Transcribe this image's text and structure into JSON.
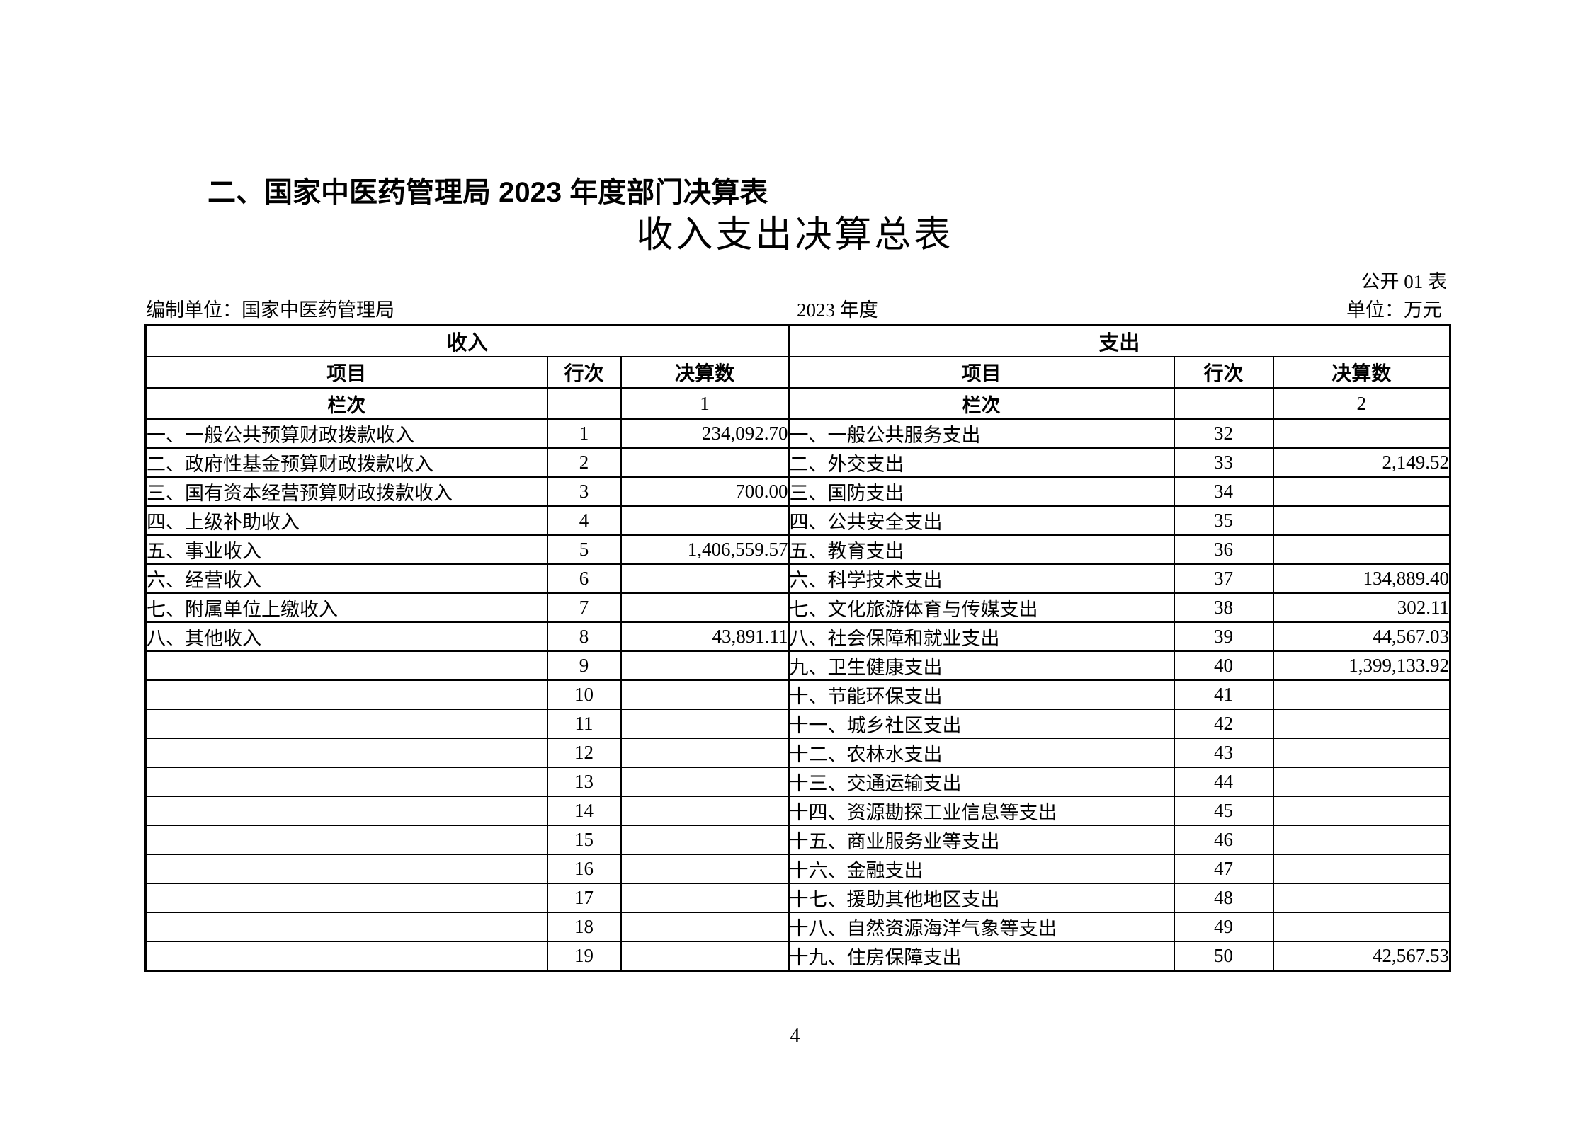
{
  "page": {
    "section_title": "二、国家中医药管理局 2023 年度部门决算表",
    "table_title": "收入支出决算总表",
    "table_code": "公开 01 表",
    "prepared_by": "编制单位：国家中医药管理局",
    "period": "2023 年度",
    "unit_label": "单位：万元",
    "page_number": "4"
  },
  "table": {
    "income_header": "收入",
    "expense_header": "支出",
    "col_item": "项目",
    "col_line": "行次",
    "col_amount": "决算数",
    "lanci_label": "栏次",
    "income_col_index": "1",
    "expense_col_index": "2",
    "income_rows": [
      {
        "label": "一、一般公共预算财政拨款收入",
        "line": "1",
        "amount": "234,092.70"
      },
      {
        "label": "二、政府性基金预算财政拨款收入",
        "line": "2",
        "amount": ""
      },
      {
        "label": "三、国有资本经营预算财政拨款收入",
        "line": "3",
        "amount": "700.00"
      },
      {
        "label": "四、上级补助收入",
        "line": "4",
        "amount": ""
      },
      {
        "label": "五、事业收入",
        "line": "5",
        "amount": "1,406,559.57"
      },
      {
        "label": "六、经营收入",
        "line": "6",
        "amount": ""
      },
      {
        "label": "七、附属单位上缴收入",
        "line": "7",
        "amount": ""
      },
      {
        "label": "八、其他收入",
        "line": "8",
        "amount": "43,891.11"
      },
      {
        "label": "",
        "line": "9",
        "amount": ""
      },
      {
        "label": "",
        "line": "10",
        "amount": ""
      },
      {
        "label": "",
        "line": "11",
        "amount": ""
      },
      {
        "label": "",
        "line": "12",
        "amount": ""
      },
      {
        "label": "",
        "line": "13",
        "amount": ""
      },
      {
        "label": "",
        "line": "14",
        "amount": ""
      },
      {
        "label": "",
        "line": "15",
        "amount": ""
      },
      {
        "label": "",
        "line": "16",
        "amount": ""
      },
      {
        "label": "",
        "line": "17",
        "amount": ""
      },
      {
        "label": "",
        "line": "18",
        "amount": ""
      },
      {
        "label": "",
        "line": "19",
        "amount": ""
      }
    ],
    "expense_rows": [
      {
        "label": "一、一般公共服务支出",
        "line": "32",
        "amount": ""
      },
      {
        "label": "二、外交支出",
        "line": "33",
        "amount": "2,149.52"
      },
      {
        "label": "三、国防支出",
        "line": "34",
        "amount": ""
      },
      {
        "label": "四、公共安全支出",
        "line": "35",
        "amount": ""
      },
      {
        "label": "五、教育支出",
        "line": "36",
        "amount": ""
      },
      {
        "label": "六、科学技术支出",
        "line": "37",
        "amount": "134,889.40"
      },
      {
        "label": "七、文化旅游体育与传媒支出",
        "line": "38",
        "amount": "302.11"
      },
      {
        "label": "八、社会保障和就业支出",
        "line": "39",
        "amount": "44,567.03"
      },
      {
        "label": "九、卫生健康支出",
        "line": "40",
        "amount": "1,399,133.92"
      },
      {
        "label": "十、节能环保支出",
        "line": "41",
        "amount": ""
      },
      {
        "label": "十一、城乡社区支出",
        "line": "42",
        "amount": ""
      },
      {
        "label": "十二、农林水支出",
        "line": "43",
        "amount": ""
      },
      {
        "label": "十三、交通运输支出",
        "line": "44",
        "amount": ""
      },
      {
        "label": "十四、资源勘探工业信息等支出",
        "line": "45",
        "amount": ""
      },
      {
        "label": "十五、商业服务业等支出",
        "line": "46",
        "amount": ""
      },
      {
        "label": "十六、金融支出",
        "line": "47",
        "amount": ""
      },
      {
        "label": "十七、援助其他地区支出",
        "line": "48",
        "amount": ""
      },
      {
        "label": "十八、自然资源海洋气象等支出",
        "line": "49",
        "amount": ""
      },
      {
        "label": "十九、住房保障支出",
        "line": "50",
        "amount": "42,567.53"
      }
    ]
  }
}
